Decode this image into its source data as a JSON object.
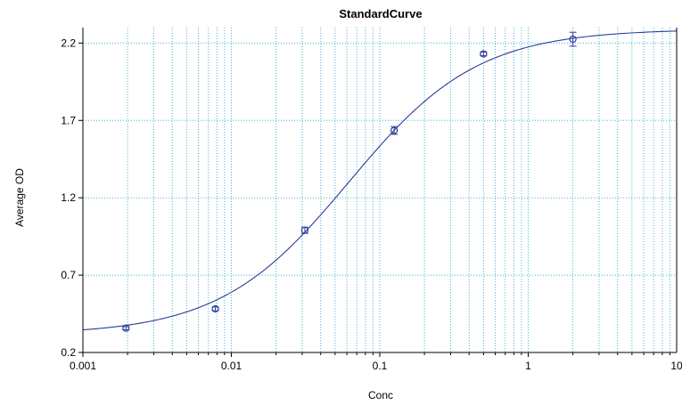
{
  "chart_data": {
    "type": "scatter",
    "title": "StandardCurve",
    "xlabel": "Conc",
    "ylabel": "Average OD",
    "xscale": "log",
    "xlim": [
      0.001,
      10
    ],
    "ylim": [
      0.2,
      2.3
    ],
    "xticks": [
      0.001,
      0.01,
      0.1,
      1,
      10
    ],
    "xtick_labels": [
      "0.001",
      "0.01",
      "0.1",
      "1",
      "10"
    ],
    "yticks": [
      0.2,
      0.7,
      1.2,
      1.7,
      2.2
    ],
    "ytick_labels": [
      "0.2",
      "0.7",
      "1.2",
      "1.7",
      "2.2"
    ],
    "grid": true,
    "colors": {
      "series": "#2b3d9a",
      "grid": "#3fb6d6",
      "axis": "#000000"
    },
    "points": [
      {
        "x": 0.00195,
        "y": 0.357,
        "err": 0.01
      },
      {
        "x": 0.0078,
        "y": 0.482,
        "err": 0.012
      },
      {
        "x": 0.03125,
        "y": 0.99,
        "err": 0.02
      },
      {
        "x": 0.125,
        "y": 1.635,
        "err": 0.025
      },
      {
        "x": 0.5,
        "y": 2.13,
        "err": 0.012
      },
      {
        "x": 2.0,
        "y": 2.225,
        "err": 0.045
      }
    ],
    "fit": {
      "model": "4PL",
      "bottom": 0.315,
      "top": 2.29,
      "ec50": 0.062,
      "hill": 1.0
    }
  }
}
